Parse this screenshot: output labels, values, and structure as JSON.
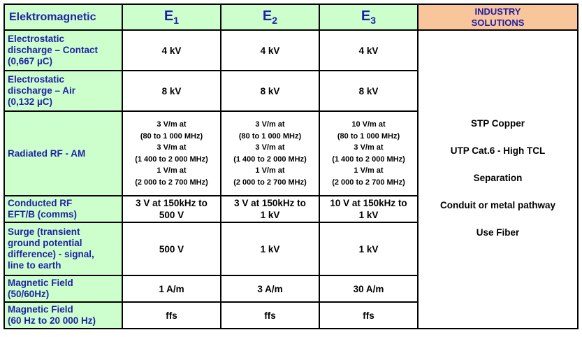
{
  "header": {
    "label": "Elektromagnetic",
    "e1": "E",
    "e1_sub": "1",
    "e2": "E",
    "e2_sub": "2",
    "e3": "E",
    "e3_sub": "3",
    "industry_line1": "INDUSTRY",
    "industry_line2": "SOLUTIONS"
  },
  "rows": [
    {
      "label": [
        "Electrostatic",
        "discharge – Contact",
        "(0,667 µC)"
      ],
      "e1": [
        "4 kV"
      ],
      "e2": [
        "4 kV"
      ],
      "e3": [
        "4 kV"
      ]
    },
    {
      "label": [
        "Electrostatic",
        "discharge – Air",
        "(0,132 µC)"
      ],
      "e1": [
        "8 kV"
      ],
      "e2": [
        "8 kV"
      ],
      "e3": [
        "8 kV"
      ]
    },
    {
      "label": [
        "Radiated RF - AM"
      ],
      "e1": [
        "3 V/m at",
        "(80 to 1 000 MHz)",
        "3 V/m at",
        "(1 400 to 2 000 MHz)",
        "1 V/m at",
        "(2 000 to 2 700 MHz)"
      ],
      "e2": [
        "3 V/m at",
        "(80 to 1 000 MHz)",
        "3 V/m at",
        "(1 400 to 2 000 MHz)",
        "1 V/m at",
        "(2 000 to 2 700 MHz)"
      ],
      "e3": [
        "10 V/m at",
        "(80 to 1 000 MHz)",
        "3 V/m at",
        "(1 400 to 2 000 MHz)",
        "1 V/m at",
        "(2 000 to 2 700 MHz)"
      ]
    },
    {
      "label": [
        "Conducted RF",
        "EFT/B (comms)"
      ],
      "e1": [
        "3 V at 150kHz to",
        "500 V"
      ],
      "e2": [
        "3 V at 150kHz to",
        "1 kV"
      ],
      "e3": [
        "10 V at 150kHz to",
        "1 kV"
      ]
    },
    {
      "label": [
        "Surge (transient",
        "ground potential",
        "difference) - signal,",
        "line to earth"
      ],
      "e1": [
        "500 V"
      ],
      "e2": [
        "1 kV"
      ],
      "e3": [
        "1 kV"
      ]
    },
    {
      "label": [
        "Magnetic Field",
        "(50/60Hz)"
      ],
      "e1": [
        "1 A/m"
      ],
      "e2": [
        "3 A/m"
      ],
      "e3": [
        "30 A/m"
      ]
    },
    {
      "label": [
        "Magnetic Field",
        "(60 Hz to 20 000 Hz)"
      ],
      "e1": [
        "ffs"
      ],
      "e2": [
        "ffs"
      ],
      "e3": [
        "ffs"
      ]
    }
  ],
  "solutions": [
    "STP Copper",
    "UTP Cat.6 - High TCL",
    "Separation",
    "Conduit or metal pathway",
    "Use Fiber"
  ]
}
